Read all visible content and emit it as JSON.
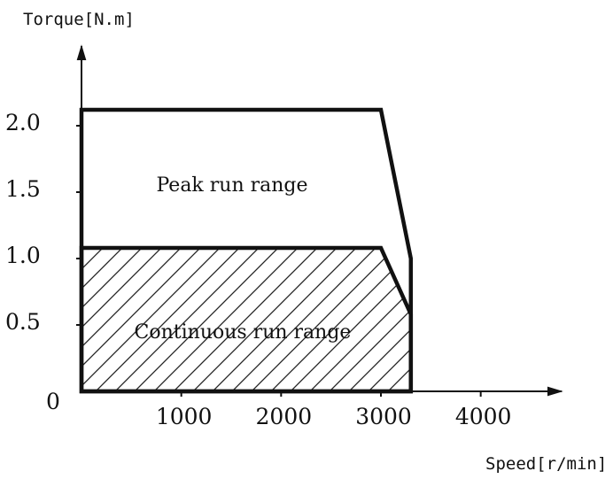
{
  "chart_data": {
    "type": "area",
    "ylabel": "Torque[N.m]",
    "xlabel": "Speed[r/min]",
    "x_ticks": [
      {
        "value": 1000,
        "label": "1000"
      },
      {
        "value": 2000,
        "label": "2000"
      },
      {
        "value": 3000,
        "label": "3000"
      },
      {
        "value": 4000,
        "label": "4000"
      }
    ],
    "y_ticks": [
      {
        "value": 0.5,
        "label": "0.5"
      },
      {
        "value": 1.0,
        "label": "1.0"
      },
      {
        "value": 1.5,
        "label": "1.5"
      },
      {
        "value": 2.0,
        "label": "2.0"
      }
    ],
    "origin_label": "0",
    "xlim": [
      0,
      4800
    ],
    "ylim": [
      0,
      2.6
    ],
    "regions": [
      {
        "name": "Peak run range",
        "fill": "none",
        "points": [
          [
            0,
            0
          ],
          [
            0,
            2.12
          ],
          [
            3000,
            2.12
          ],
          [
            3300,
            1.0
          ],
          [
            3300,
            0
          ]
        ]
      },
      {
        "name": "Continuous run range",
        "fill": "hatched",
        "points": [
          [
            0,
            0
          ],
          [
            0,
            1.08
          ],
          [
            3000,
            1.08
          ],
          [
            3300,
            0.58
          ],
          [
            3300,
            0
          ]
        ]
      }
    ],
    "grid": false,
    "colors": {
      "line": "#111111",
      "hatch": "#222222",
      "background": "#ffffff"
    }
  }
}
